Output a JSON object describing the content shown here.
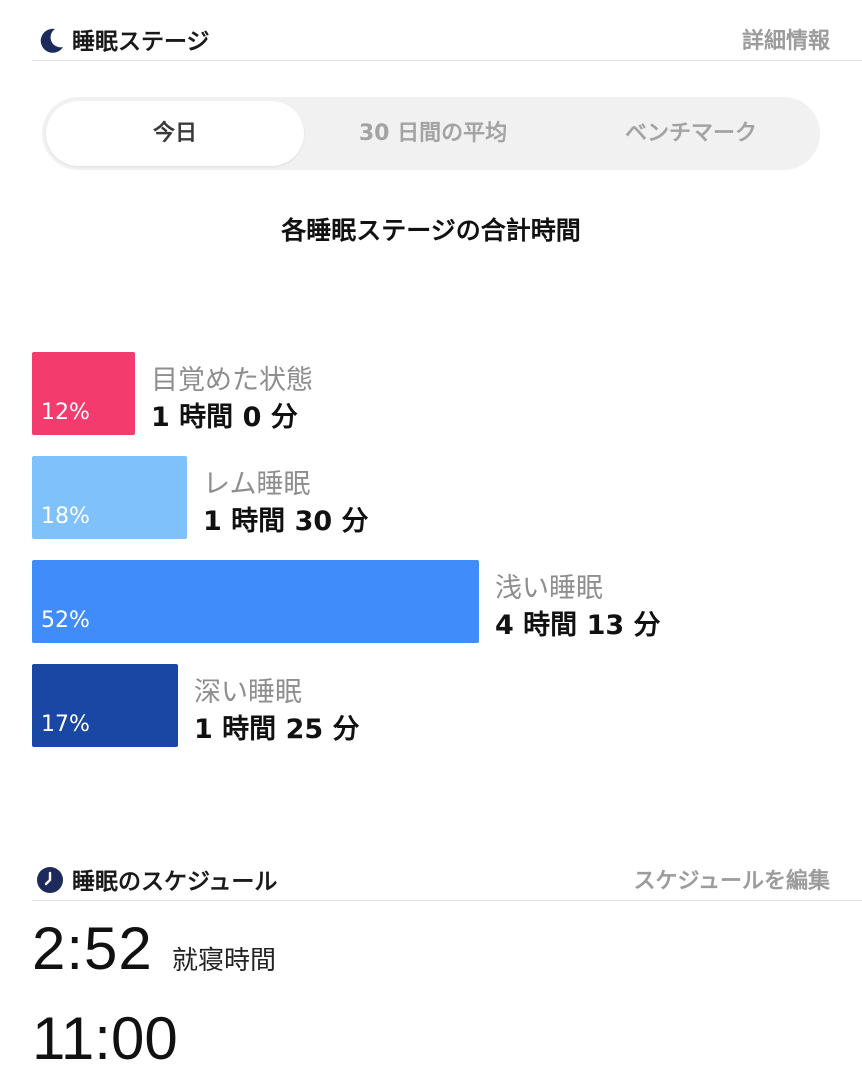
{
  "stages_section": {
    "title": "睡眠ステージ",
    "link": "詳細情報",
    "icon": "moon-icon"
  },
  "tabs": [
    {
      "label": "今日",
      "active": true
    },
    {
      "label": "30 日間の平均",
      "active": false
    },
    {
      "label": "ベンチマーク",
      "active": false
    }
  ],
  "chart_data": {
    "type": "bar",
    "title": "各睡眠ステージの合計時間",
    "categories": [
      "目覚めた状態",
      "レム睡眠",
      "浅い睡眠",
      "深い睡眠"
    ],
    "values": [
      12,
      18,
      52,
      17
    ],
    "percent_labels": [
      "12%",
      "18%",
      "52%",
      "17%"
    ],
    "durations": [
      "1 時間 0 分",
      "1 時間 30 分",
      "4 時間 13 分",
      "1 時間 25 分"
    ],
    "colors": [
      "#f43b6e",
      "#7fc2fb",
      "#3f8cfa",
      "#1a47a3"
    ]
  },
  "schedule_section": {
    "title": "睡眠のスケジュール",
    "link": "スケジュールを編集",
    "icon": "clock-icon"
  },
  "bedtime": {
    "time": "2:52",
    "label": "就寝時間"
  },
  "waketime": {
    "time": "11:00"
  }
}
